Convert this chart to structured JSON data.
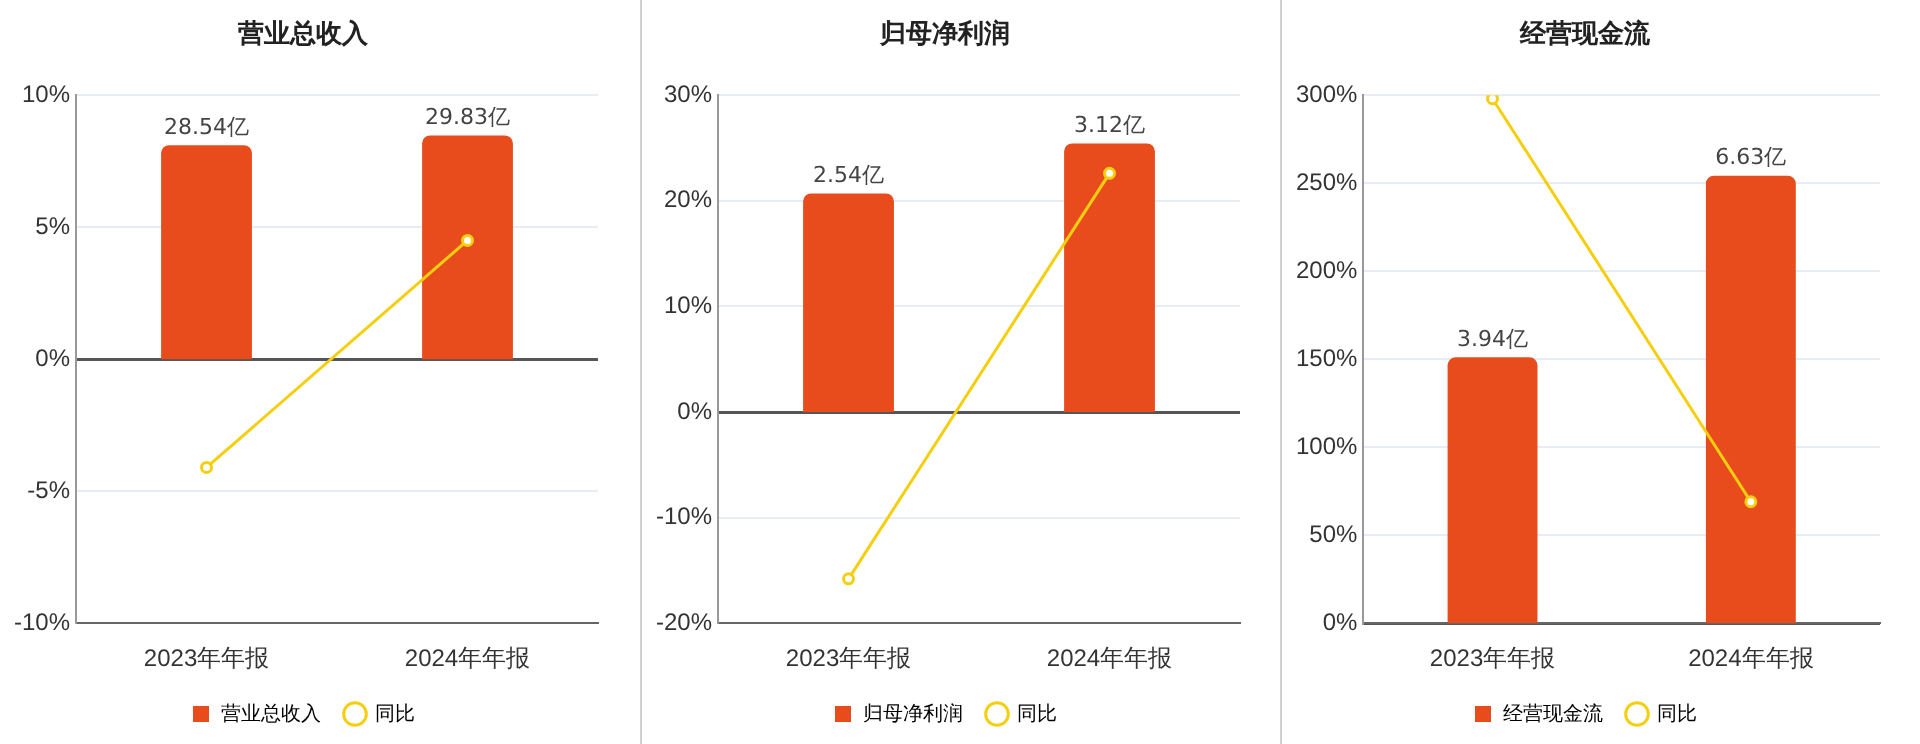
{
  "chart_data": [
    {
      "type": "bar",
      "title": "营业总收入",
      "categories": [
        "2023年年报",
        "2024年年报"
      ],
      "series": [
        {
          "name": "营业总收入",
          "axis": "y2",
          "color": "#e84c1c",
          "values": [
            28.54,
            29.83
          ],
          "value_labels": [
            "28.54亿",
            "29.83亿"
          ]
        },
        {
          "name": "同比",
          "type": "line",
          "color": "#f5cf0f",
          "values": [
            -4.1,
            4.5
          ]
        }
      ],
      "ylim": [
        -10,
        10
      ],
      "yticks": [
        {
          "value": -10,
          "label": "-10%"
        },
        {
          "value": -5,
          "label": "-5%"
        },
        {
          "value": 0,
          "label": "0%"
        },
        {
          "value": 5,
          "label": "5%"
        },
        {
          "value": 10,
          "label": "10%"
        }
      ],
      "grid": "y",
      "legend": "bottom",
      "marker": "circle"
    },
    {
      "type": "bar",
      "title": "归母净利润",
      "categories": [
        "2023年年报",
        "2024年年报"
      ],
      "series": [
        {
          "name": "归母净利润",
          "axis": "y2",
          "color": "#e84c1c",
          "values": [
            2.54,
            3.12
          ],
          "value_labels": [
            "2.54亿",
            "3.12亿"
          ]
        },
        {
          "name": "同比",
          "type": "line",
          "color": "#f5cf0f",
          "values": [
            -15.8,
            22.6
          ]
        }
      ],
      "ylim": [
        -20,
        30
      ],
      "yticks": [
        {
          "value": -20,
          "label": "-20%"
        },
        {
          "value": -10,
          "label": "-10%"
        },
        {
          "value": 0,
          "label": "0%"
        },
        {
          "value": 10,
          "label": "10%"
        },
        {
          "value": 20,
          "label": "20%"
        },
        {
          "value": 30,
          "label": "30%"
        }
      ],
      "grid": "y",
      "legend": "bottom",
      "marker": "circle"
    },
    {
      "type": "bar",
      "title": "经营现金流",
      "categories": [
        "2023年年报",
        "2024年年报"
      ],
      "series": [
        {
          "name": "经营现金流",
          "axis": "y2",
          "color": "#e84c1c",
          "values": [
            3.94,
            6.63
          ],
          "value_labels": [
            "3.94亿",
            "6.63亿"
          ]
        },
        {
          "name": "同比",
          "type": "line",
          "color": "#f5cf0f",
          "values": [
            298,
            69
          ]
        }
      ],
      "ylim": [
        0,
        300
      ],
      "yticks": [
        {
          "value": 0,
          "label": "0%"
        },
        {
          "value": 50,
          "label": "50%"
        },
        {
          "value": 100,
          "label": "100%"
        },
        {
          "value": 150,
          "label": "150%"
        },
        {
          "value": 200,
          "label": "200%"
        },
        {
          "value": 250,
          "label": "250%"
        },
        {
          "value": 300,
          "label": "300%"
        }
      ],
      "grid": "y",
      "legend": "bottom",
      "marker": "circle"
    }
  ]
}
